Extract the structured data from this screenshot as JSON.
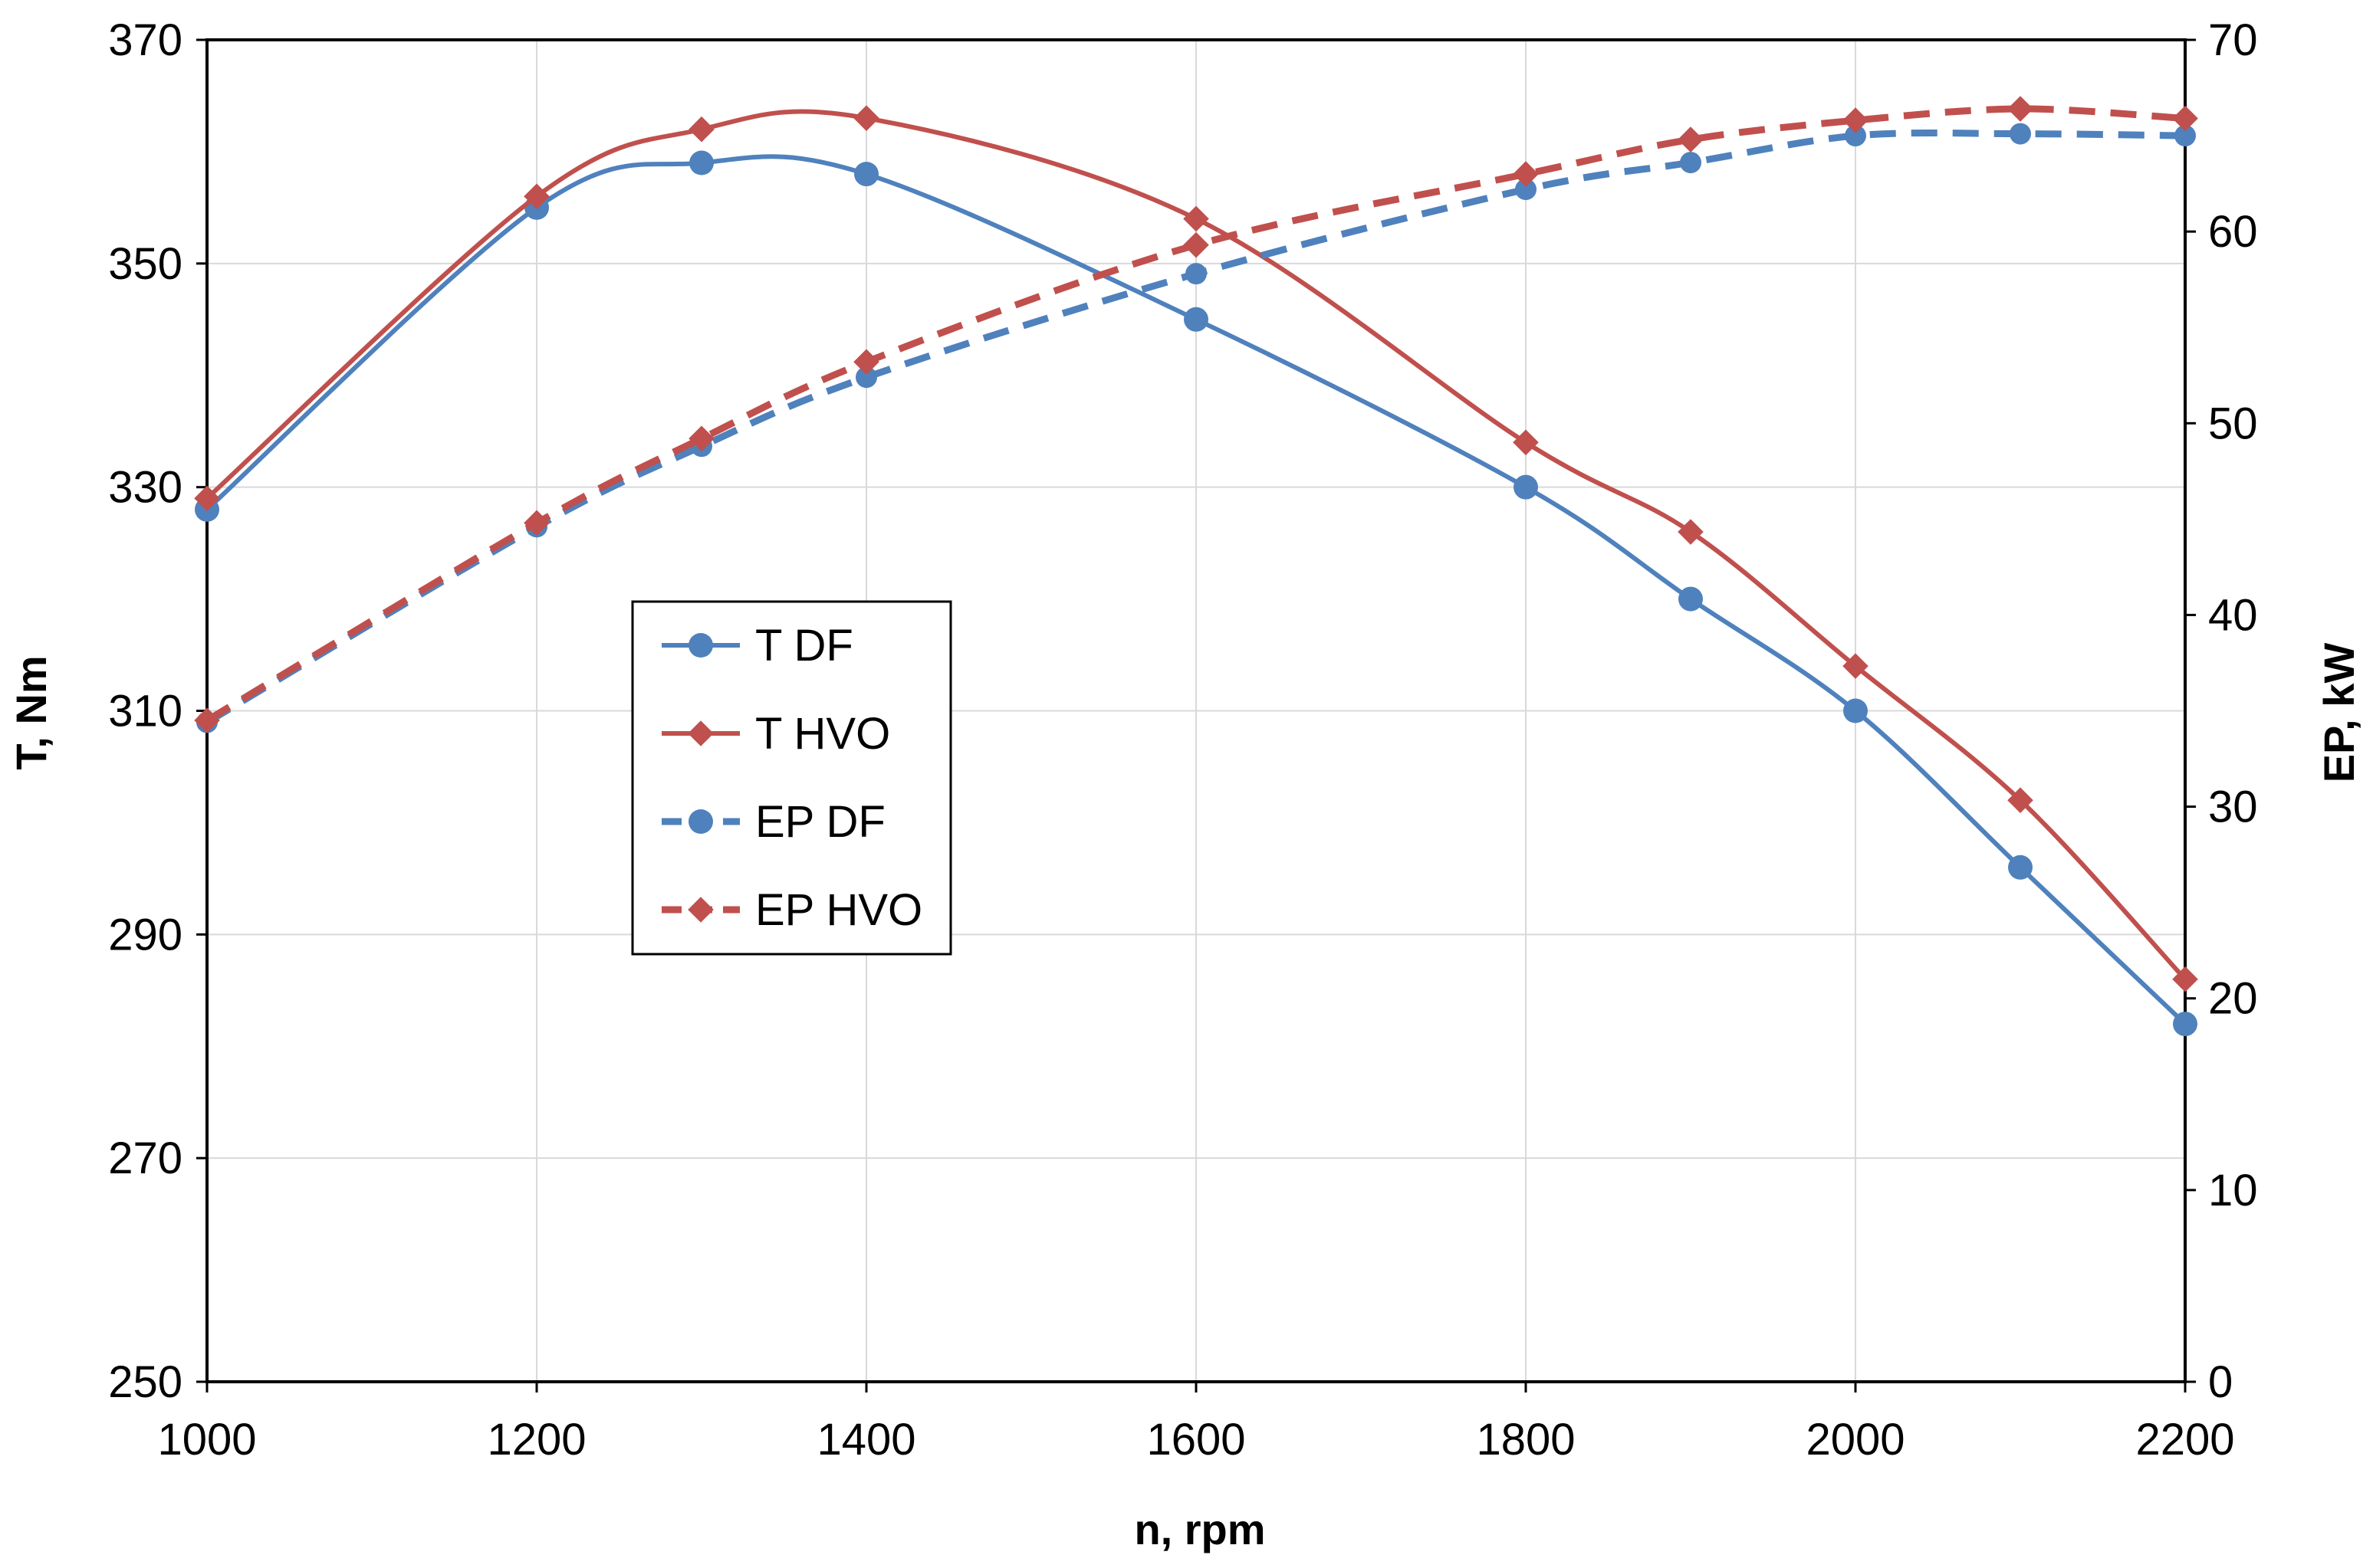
{
  "chart_data": {
    "type": "line",
    "title": "",
    "x": [
      1000,
      1200,
      1300,
      1400,
      1600,
      1800,
      1900,
      2000,
      2100,
      2200
    ],
    "xlabel": "n, rpm",
    "xlim": [
      1000,
      2200
    ],
    "xticks": [
      "1000",
      "1200",
      "1400",
      "1600",
      "1800",
      "2000",
      "2200"
    ],
    "ylabel_left": "T, Nm",
    "ylim_left": [
      250,
      370
    ],
    "yticks_left": [
      "250",
      "270",
      "290",
      "310",
      "330",
      "350",
      "370"
    ],
    "ylabel_right": "EP, kW",
    "ylim_right": [
      0,
      70
    ],
    "yticks_right": [
      "0",
      "10",
      "20",
      "30",
      "40",
      "50",
      "60",
      "70"
    ],
    "grid": true,
    "legend_position": "center-left",
    "series": [
      {
        "name": "T DF",
        "axis": "left",
        "style": "solid",
        "marker": "circle",
        "color": "#4f81bd",
        "values": [
          328,
          355,
          359,
          358,
          345,
          330,
          320,
          310,
          296,
          282
        ]
      },
      {
        "name": "T HVO",
        "axis": "left",
        "style": "solid",
        "marker": "diamond",
        "color": "#c0504d",
        "values": [
          329,
          356,
          362,
          363,
          354,
          334,
          326,
          314,
          302,
          286
        ]
      },
      {
        "name": "EP DF",
        "axis": "right",
        "style": "dashed",
        "marker": "circle",
        "color": "#4f81bd",
        "values": [
          34.4,
          44.6,
          48.8,
          52.4,
          57.8,
          62.2,
          63.6,
          65.0,
          65.1,
          65.0
        ]
      },
      {
        "name": "EP HVO",
        "axis": "right",
        "style": "dashed",
        "marker": "diamond",
        "color": "#c0504d",
        "values": [
          34.5,
          44.8,
          49.2,
          53.2,
          59.3,
          63.0,
          64.8,
          65.8,
          66.4,
          65.9
        ]
      }
    ]
  }
}
